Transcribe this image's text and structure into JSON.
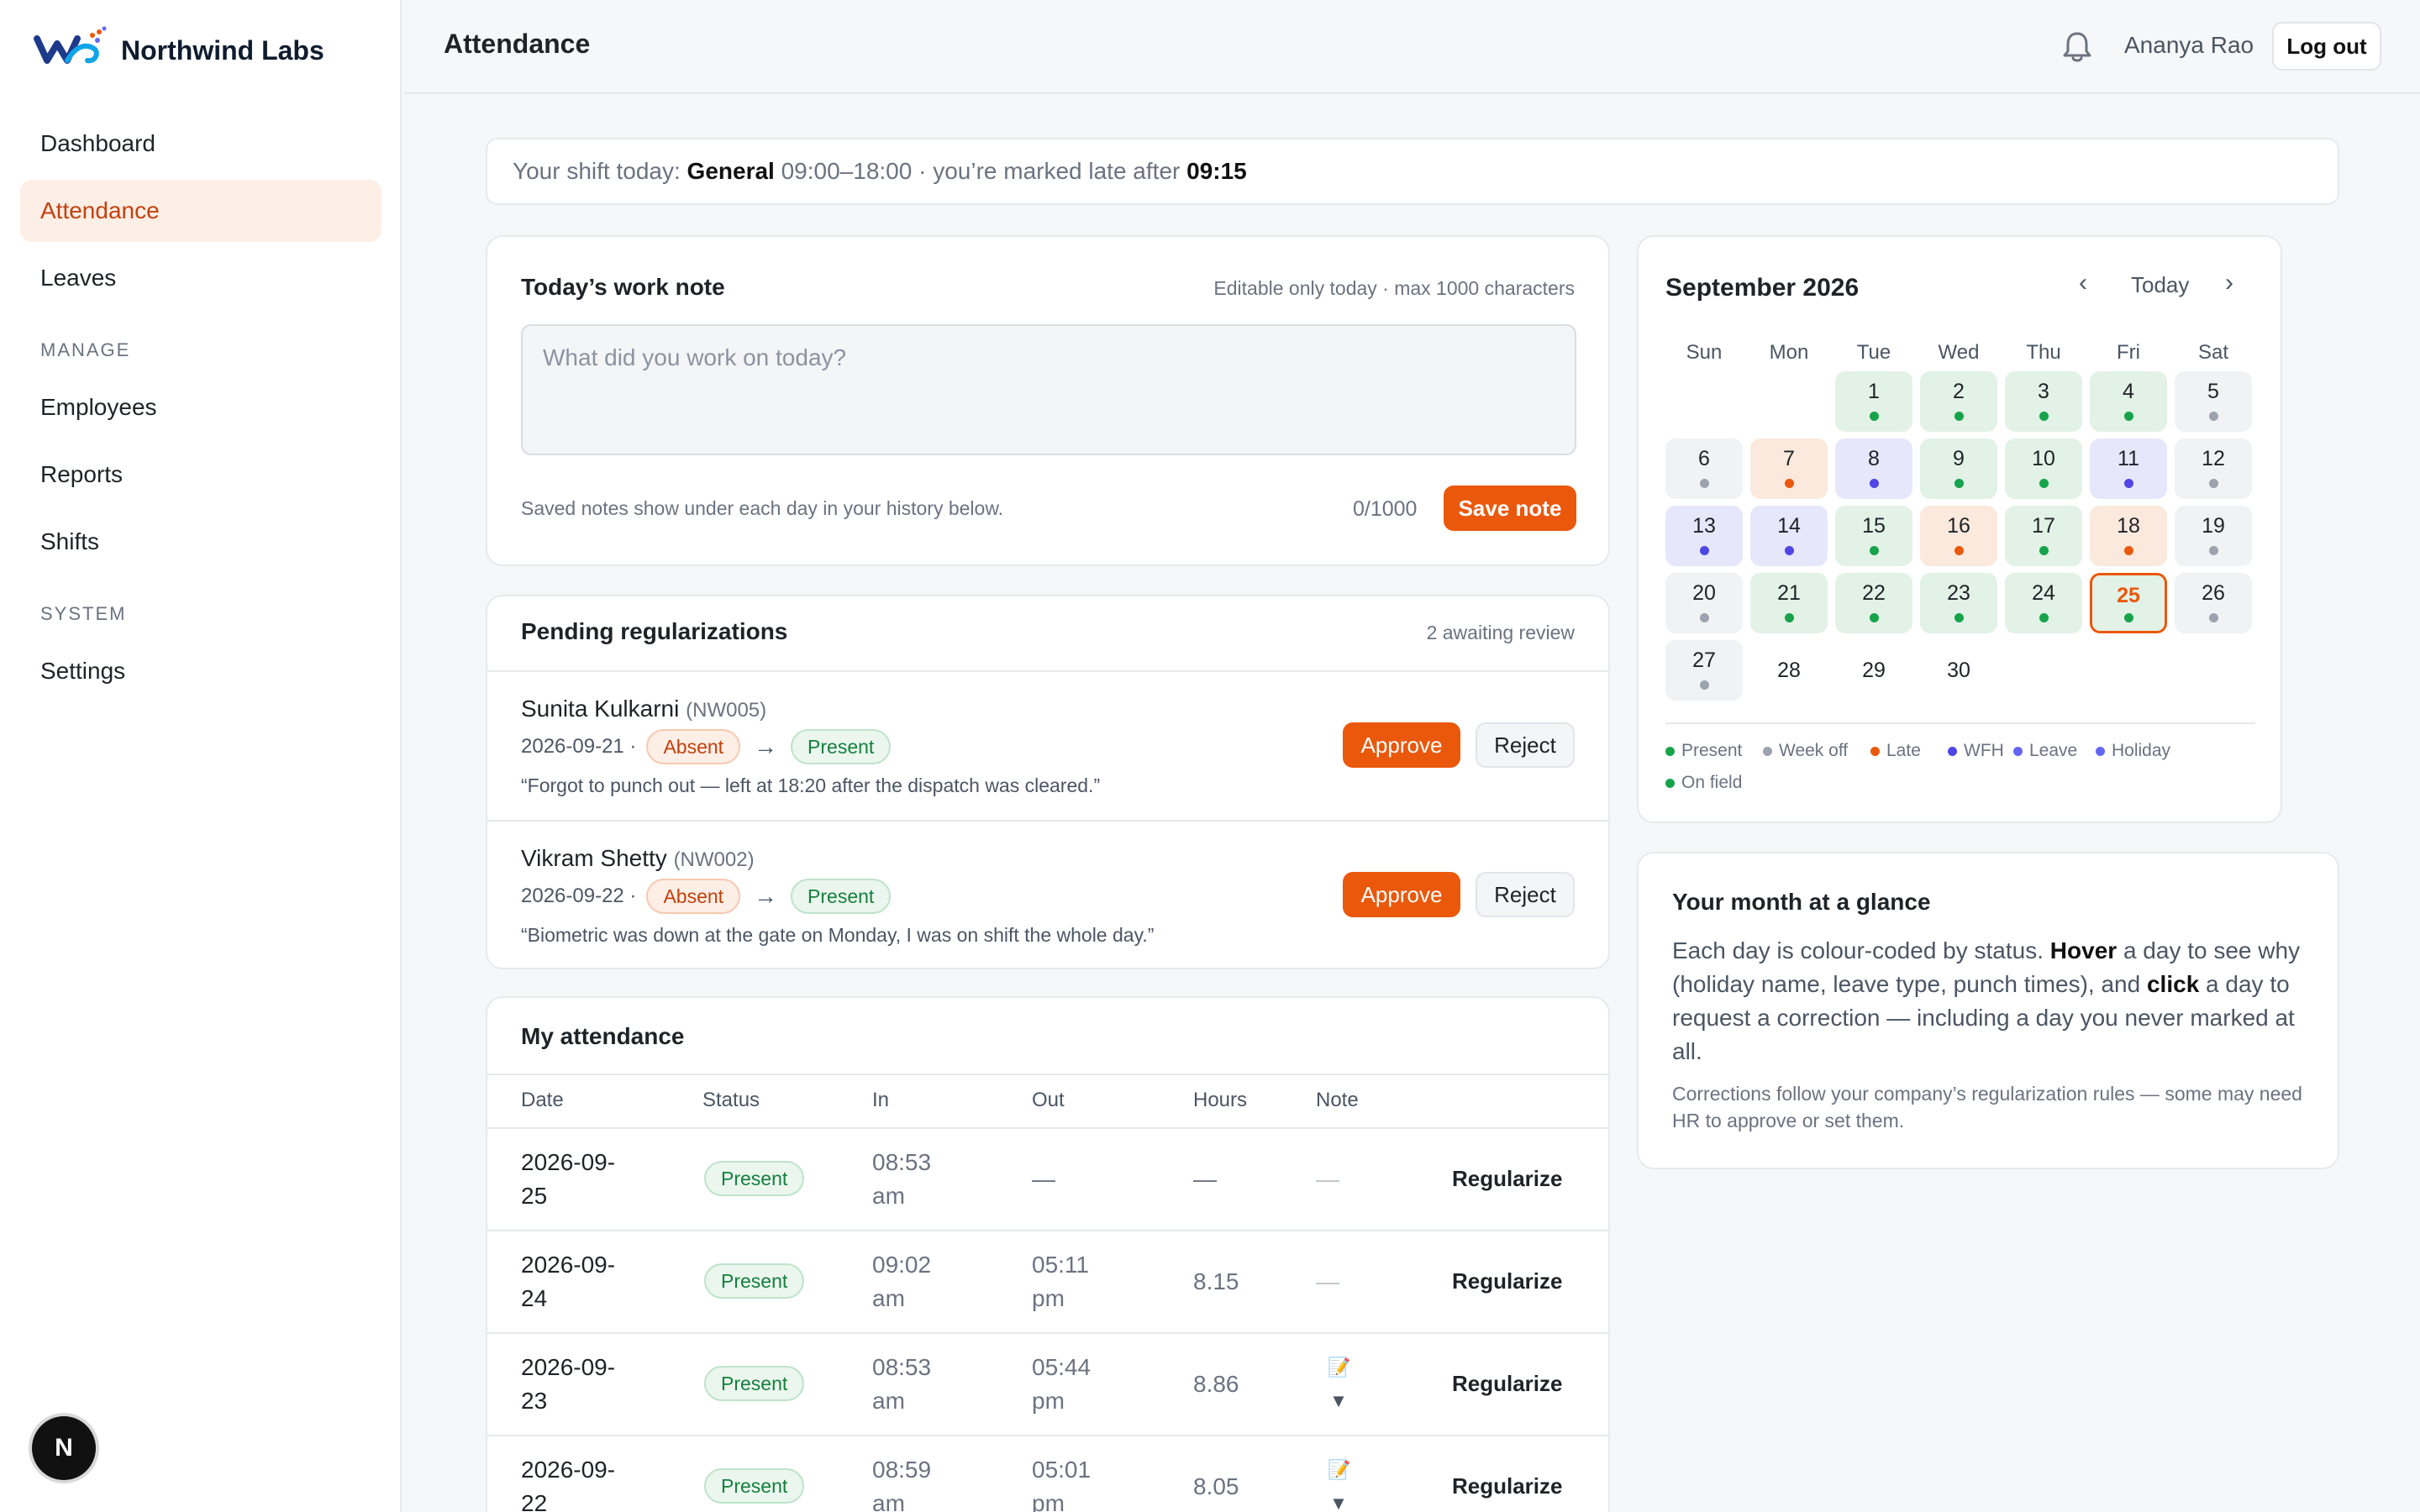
{
  "brand": {
    "name": "Northwind Labs"
  },
  "sidebar": {
    "items": [
      {
        "label": "Dashboard"
      },
      {
        "label": "Attendance"
      },
      {
        "label": "Leaves"
      },
      {
        "label": "Employees"
      },
      {
        "label": "Reports"
      },
      {
        "label": "Shifts"
      },
      {
        "label": "Settings"
      }
    ],
    "sections": {
      "manage": "MANAGE",
      "system": "SYSTEM"
    },
    "footer_badge": "N"
  },
  "header": {
    "title": "Attendance",
    "user": "Ananya Rao",
    "logout": "Log out"
  },
  "shift": {
    "prefix": "Your shift today:",
    "name": "General",
    "time": "09:00–18:00 · you’re marked late after",
    "late_after": "09:15"
  },
  "work_note": {
    "title": "Today’s work note",
    "hint": "Editable only today · max 1000 characters",
    "placeholder": "What did you work on today?",
    "footer": "Saved notes show under each day in your history below.",
    "count": "0/1000",
    "save": "Save note"
  },
  "pending": {
    "title": "Pending regularizations",
    "count": "2 awaiting review",
    "items": [
      {
        "name": "Sunita Kulkarni",
        "code": "(NW005)",
        "date": "2026-09-21 ·",
        "from": "Absent",
        "to": "Present",
        "reason": "“Forgot to punch out — left at 18:20 after the dispatch was cleared.”",
        "approve": "Approve",
        "reject": "Reject"
      },
      {
        "name": "Vikram Shetty",
        "code": "(NW002)",
        "date": "2026-09-22 ·",
        "from": "Absent",
        "to": "Present",
        "reason": "“Biometric was down at the gate on Monday, I was on shift the whole day.”",
        "approve": "Approve",
        "reject": "Reject"
      }
    ],
    "arrow": "→"
  },
  "attendance": {
    "title": "My attendance",
    "columns": [
      "Date",
      "Status",
      "In",
      "Out",
      "Hours",
      "Note"
    ],
    "rows": [
      {
        "date_a": "2026-09-",
        "date_b": "25",
        "status": "Present",
        "in_a": "08:53",
        "in_b": "am",
        "out_a": "—",
        "out_b": "",
        "hours": "—",
        "note": "—",
        "action": "Regularize"
      },
      {
        "date_a": "2026-09-",
        "date_b": "24",
        "status": "Present",
        "in_a": "09:02",
        "in_b": "am",
        "out_a": "05:11",
        "out_b": "pm",
        "hours": "8.15",
        "note": "—",
        "action": "Regularize"
      },
      {
        "date_a": "2026-09-",
        "date_b": "23",
        "status": "Present",
        "in_a": "08:53",
        "in_b": "am",
        "out_a": "05:44",
        "out_b": "pm",
        "hours": "8.86",
        "note": "📝▼",
        "action": "Regularize"
      },
      {
        "date_a": "2026-09-",
        "date_b": "22",
        "status": "Present",
        "in_a": "08:59",
        "in_b": "am",
        "out_a": "05:01",
        "out_b": "pm",
        "hours": "8.05",
        "note": "📝▼",
        "action": "Regularize"
      }
    ]
  },
  "calendar": {
    "title": "September 2026",
    "prev": "‹",
    "today": "Today",
    "next": "›",
    "weekdays": [
      "Sun",
      "Mon",
      "Tue",
      "Wed",
      "Thu",
      "Fri",
      "Sat"
    ],
    "first_weekday": 2,
    "today_day": 25,
    "days": [
      {
        "d": "1",
        "s": "present"
      },
      {
        "d": "2",
        "s": "present"
      },
      {
        "d": "3",
        "s": "present"
      },
      {
        "d": "4",
        "s": "present"
      },
      {
        "d": "5",
        "s": "weekoff"
      },
      {
        "d": "6",
        "s": "weekoff"
      },
      {
        "d": "7",
        "s": "late"
      },
      {
        "d": "8",
        "s": "wfh"
      },
      {
        "d": "9",
        "s": "present"
      },
      {
        "d": "10",
        "s": "present"
      },
      {
        "d": "11",
        "s": "wfh"
      },
      {
        "d": "12",
        "s": "weekoff"
      },
      {
        "d": "13",
        "s": "wfh"
      },
      {
        "d": "14",
        "s": "wfh"
      },
      {
        "d": "15",
        "s": "present"
      },
      {
        "d": "16",
        "s": "late"
      },
      {
        "d": "17",
        "s": "present"
      },
      {
        "d": "18",
        "s": "late"
      },
      {
        "d": "19",
        "s": "weekoff"
      },
      {
        "d": "20",
        "s": "weekoff"
      },
      {
        "d": "21",
        "s": "present"
      },
      {
        "d": "22",
        "s": "present"
      },
      {
        "d": "23",
        "s": "present"
      },
      {
        "d": "24",
        "s": "present"
      },
      {
        "d": "25",
        "s": "present"
      },
      {
        "d": "26",
        "s": "weekoff"
      },
      {
        "d": "27",
        "s": "weekoff"
      },
      {
        "d": "28",
        "s": "none"
      },
      {
        "d": "29",
        "s": "none"
      },
      {
        "d": "30",
        "s": "none"
      }
    ],
    "legend": [
      {
        "label": "Present",
        "color": "#16a34a"
      },
      {
        "label": "Week off",
        "color": "#9ca3af"
      },
      {
        "label": "Late",
        "color": "#ea580c"
      },
      {
        "label": "WFH",
        "color": "#4f46e5"
      },
      {
        "label": "Leave",
        "color": "#6366f1"
      },
      {
        "label": "Holiday",
        "color": "#6366f1"
      },
      {
        "label": "On field",
        "color": "#16a34a"
      }
    ]
  },
  "glance": {
    "title": "Your month at a glance",
    "p1": "Each day is colour-coded by status.",
    "hover": "Hover",
    "p2": "a day to see why (holiday name, leave type, punch times), and",
    "click": "click",
    "p3": "a day to request a correction — including a day you never marked at all.",
    "small": "Corrections follow your company’s regularization rules — some may need HR to approve or set them."
  },
  "colors": {
    "accent": "#ea580c",
    "present_bg": "#e3f2e7",
    "wfh_bg": "#e6e7fb",
    "late_bg": "#fbe9dd",
    "weekoff_bg": "#f1f2f4"
  }
}
